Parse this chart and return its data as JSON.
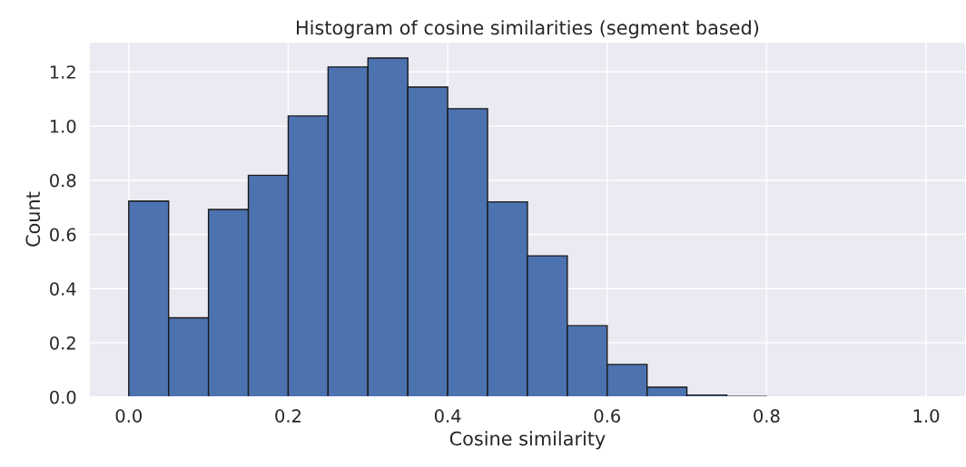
{
  "chart_data": {
    "type": "histogram",
    "title": "Histogram of cosine similarities (segment based)",
    "xlabel": "Cosine similarity",
    "ylabel": "Count",
    "bins": [
      0.0,
      0.05,
      0.1,
      0.15,
      0.2,
      0.25,
      0.3,
      0.35,
      0.4,
      0.45,
      0.5,
      0.55,
      0.6,
      0.65,
      0.7,
      0.75,
      0.8
    ],
    "values": [
      0.723,
      0.292,
      0.692,
      0.818,
      1.037,
      1.218,
      1.251,
      1.144,
      1.064,
      0.72,
      0.521,
      0.263,
      0.12,
      0.036,
      0.007,
      0.002
    ],
    "color": "#4c72b0",
    "xlim": [
      -0.05,
      1.05
    ],
    "xticks": [
      {
        "value": 0.0,
        "label": "0.0"
      },
      0.2,
      0.4,
      0.6,
      0.8,
      {
        "value": 1.0,
        "label": "1.0"
      }
    ],
    "ylim": [
      0,
      1.31
    ],
    "yticks": [
      {
        "value": 0.0,
        "label": "0.0"
      },
      0.2,
      0.4,
      0.6,
      0.8,
      {
        "value": 1.0,
        "label": "1.0"
      },
      1.2
    ],
    "grid": true
  }
}
